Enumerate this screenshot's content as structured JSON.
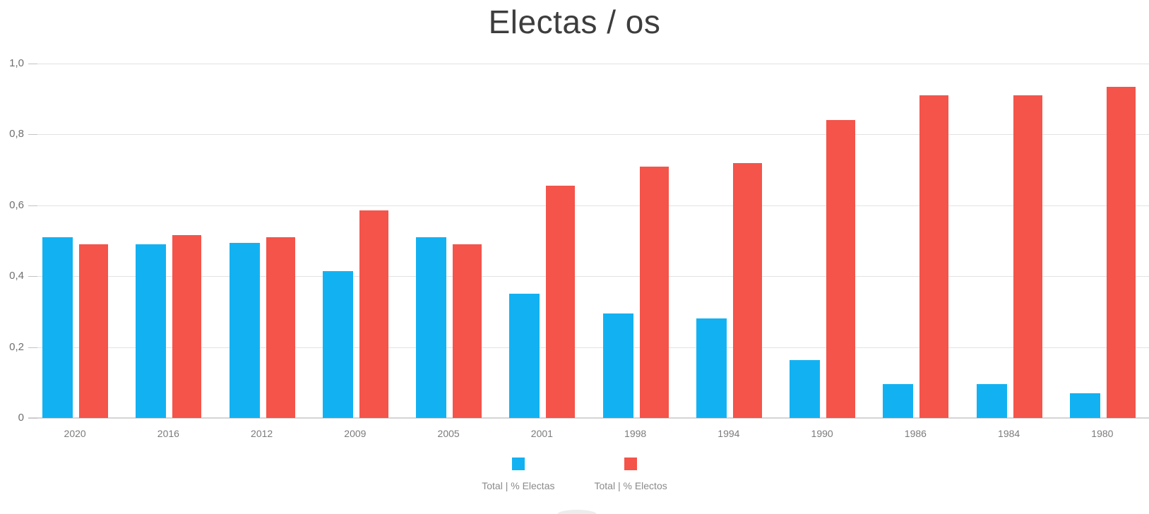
{
  "title": "Electas / os",
  "chart_data": {
    "type": "bar",
    "title": "Electas / os",
    "categories": [
      "2020",
      "2016",
      "2012",
      "2009",
      "2005",
      "2001",
      "1998",
      "1994",
      "1990",
      "1986",
      "1984",
      "1980"
    ],
    "series": [
      {
        "name": "Total | % Electas",
        "color": "#12B2F2",
        "values": [
          0.51,
          0.49,
          0.495,
          0.415,
          0.51,
          0.35,
          0.295,
          0.28,
          0.163,
          0.095,
          0.095,
          0.07
        ]
      },
      {
        "name": "Total | % Electos",
        "color": "#F4544A",
        "values": [
          0.49,
          0.515,
          0.51,
          0.585,
          0.49,
          0.655,
          0.71,
          0.72,
          0.84,
          0.91,
          0.91,
          0.935
        ]
      }
    ],
    "xlabel": "",
    "ylabel": "",
    "ylim": [
      0,
      1.0
    ],
    "y_ticks": [
      {
        "value": 1.0,
        "label": "1,0"
      },
      {
        "value": 0.8,
        "label": "0,8"
      },
      {
        "value": 0.6,
        "label": "0,6"
      },
      {
        "value": 0.4,
        "label": "0,4"
      },
      {
        "value": 0.2,
        "label": "0,2"
      },
      {
        "value": 0.0,
        "label": "0"
      }
    ],
    "grid": true,
    "legend_position": "bottom"
  },
  "legend": {
    "items": [
      {
        "label": "Total | % Electas",
        "color": "#12B2F2"
      },
      {
        "label": "Total | % Electos",
        "color": "#F4544A"
      }
    ]
  },
  "colors": {
    "background": "#FFFFFF",
    "electas": "#12B2F2",
    "electos": "#F4544A",
    "grid": "#E2E2E2",
    "axis_line": "#D4D4D4",
    "title_text": "#3D3D3D",
    "y_tick_text": "#6F6F6F",
    "x_tick_text": "#7B7B7B",
    "legend_text": "#8A8A8A"
  }
}
